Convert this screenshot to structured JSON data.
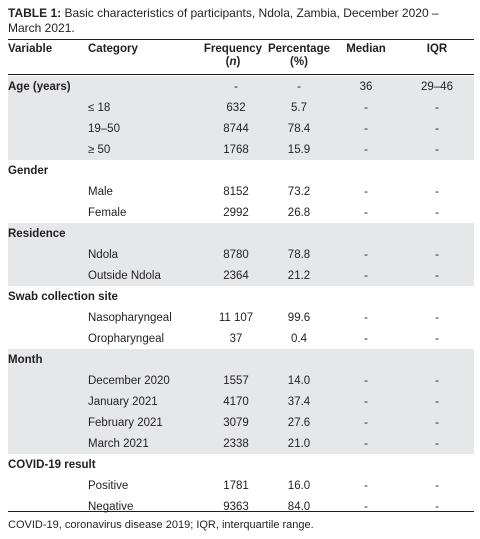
{
  "caption": {
    "label": "TABLE 1:",
    "text": "Basic characteristics of participants, Ndola, Zambia, December 2020 – March 2021."
  },
  "headers": {
    "variable": "Variable",
    "category": "Category",
    "frequency_line1": "Frequency",
    "frequency_line2": "n",
    "percentage_line1": "Percentage",
    "percentage_line2": "(%)",
    "median": "Median",
    "iqr": "IQR"
  },
  "rows": [
    {
      "section": "Age (years)",
      "frequency": "-",
      "percentage": "-",
      "median": "36",
      "iqr": "29–46"
    },
    {
      "category": "≤ 18",
      "frequency": "632",
      "percentage": "5.7",
      "median": "-",
      "iqr": "-"
    },
    {
      "category": "19–50",
      "frequency": "8744",
      "percentage": "78.4",
      "median": "-",
      "iqr": "-"
    },
    {
      "category": "≥ 50",
      "frequency": "1768",
      "percentage": "15.9",
      "median": "-",
      "iqr": "-"
    },
    {
      "section": "Gender"
    },
    {
      "category": "Male",
      "frequency": "8152",
      "percentage": "73.2",
      "median": "-",
      "iqr": "-"
    },
    {
      "category": "Female",
      "frequency": "2992",
      "percentage": "26.8",
      "median": "-",
      "iqr": "-"
    },
    {
      "section": "Residence"
    },
    {
      "category": "Ndola",
      "frequency": "8780",
      "percentage": "78.8",
      "median": "-",
      "iqr": "-"
    },
    {
      "category": "Outside Ndola",
      "frequency": "2364",
      "percentage": "21.2",
      "median": "-",
      "iqr": "-"
    },
    {
      "section": "Swab collection site"
    },
    {
      "category": "Nasopharyngeal",
      "frequency": "11 107",
      "percentage": "99.6",
      "median": "-",
      "iqr": "-"
    },
    {
      "category": "Oropharyngeal",
      "frequency": "37",
      "percentage": "0.4",
      "median": "-",
      "iqr": "-"
    },
    {
      "section": "Month"
    },
    {
      "category": "December 2020",
      "frequency": "1557",
      "percentage": "14.0",
      "median": "-",
      "iqr": "-"
    },
    {
      "category": "January 2021",
      "frequency": "4170",
      "percentage": "37.4",
      "median": "-",
      "iqr": "-"
    },
    {
      "category": "February 2021",
      "frequency": "3079",
      "percentage": "27.6",
      "median": "-",
      "iqr": "-"
    },
    {
      "category": "March 2021",
      "frequency": "2338",
      "percentage": "21.0",
      "median": "-",
      "iqr": "-"
    },
    {
      "section": "COVID-19 result"
    },
    {
      "category": "Positive",
      "frequency": "1781",
      "percentage": "16.0",
      "median": "-",
      "iqr": "-"
    },
    {
      "category": "Negative",
      "frequency": "9363",
      "percentage": "84.0",
      "median": "-",
      "iqr": "-"
    }
  ],
  "footnote": "COVID-19, coronavirus disease 2019; IQR, interquartile range.",
  "colors": {
    "band": "#e6e7e8",
    "text": "#231f20"
  }
}
